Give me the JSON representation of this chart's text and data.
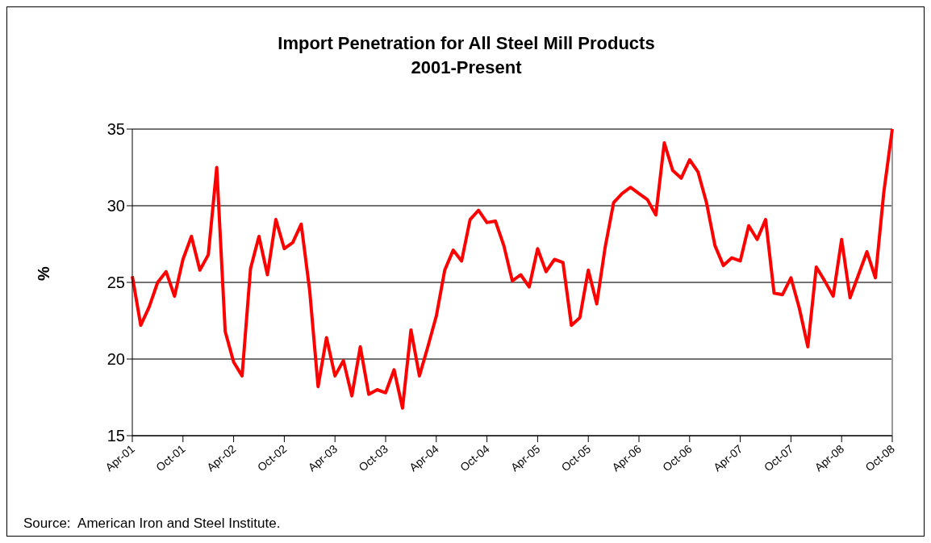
{
  "chart_data": {
    "type": "line",
    "title": "Import Penetration for All Steel Mill Products\n2001-Present",
    "ylabel": "%",
    "categories": [
      "Apr-01",
      null,
      null,
      null,
      null,
      null,
      "Oct-01",
      null,
      null,
      null,
      null,
      null,
      "Apr-02",
      null,
      null,
      null,
      null,
      null,
      "Oct-02",
      null,
      null,
      null,
      null,
      null,
      "Apr-03",
      null,
      null,
      null,
      null,
      null,
      "Oct-03",
      null,
      null,
      null,
      null,
      null,
      "Apr-04",
      null,
      null,
      null,
      null,
      null,
      "Oct-04",
      null,
      null,
      null,
      null,
      null,
      "Apr-05",
      null,
      null,
      null,
      null,
      null,
      "Oct-05",
      null,
      null,
      null,
      null,
      null,
      "Apr-06",
      null,
      null,
      null,
      null,
      null,
      "Oct-06",
      null,
      null,
      null,
      null,
      null,
      "Apr-07",
      null,
      null,
      null,
      null,
      null,
      "Oct-07",
      null,
      null,
      null,
      null,
      null,
      "Apr-08",
      null,
      null,
      null,
      null,
      null,
      "Oct-08"
    ],
    "series": [
      {
        "color": "#ff0000",
        "values": [
          25.4,
          22.2,
          23.4,
          25.0,
          25.7,
          24.1,
          26.5,
          28.0,
          25.8,
          26.8,
          32.5,
          21.8,
          19.8,
          18.9,
          25.9,
          28.0,
          25.5,
          29.1,
          27.2,
          27.6,
          28.8,
          24.5,
          18.2,
          21.4,
          18.9,
          19.9,
          17.6,
          20.8,
          17.7,
          18.0,
          17.8,
          19.3,
          16.8,
          21.9,
          18.9,
          20.8,
          22.8,
          25.8,
          27.1,
          26.4,
          29.1,
          29.7,
          28.9,
          29.0,
          27.4,
          25.1,
          25.5,
          24.7,
          27.2,
          25.7,
          26.5,
          26.3,
          22.2,
          22.7,
          25.8,
          23.6,
          27.3,
          30.2,
          30.8,
          31.2,
          30.8,
          30.4,
          29.4,
          34.1,
          32.3,
          31.8,
          33.0,
          32.2,
          30.2,
          27.4,
          26.1,
          26.6,
          26.4,
          28.7,
          27.8,
          29.1,
          24.3,
          24.2,
          25.3,
          23.3,
          20.8,
          26.0,
          25.1,
          24.1,
          27.8,
          24.0,
          25.5,
          27.0,
          25.3,
          30.9,
          35.0
        ]
      }
    ],
    "ylim": [
      15,
      35
    ],
    "yticks": [
      15,
      20,
      25,
      30,
      35
    ],
    "grid": "y",
    "legend": false,
    "marker": "none",
    "line_style": "solid",
    "annotations": [
      "Source:  American Iron and Steel Institute."
    ]
  }
}
